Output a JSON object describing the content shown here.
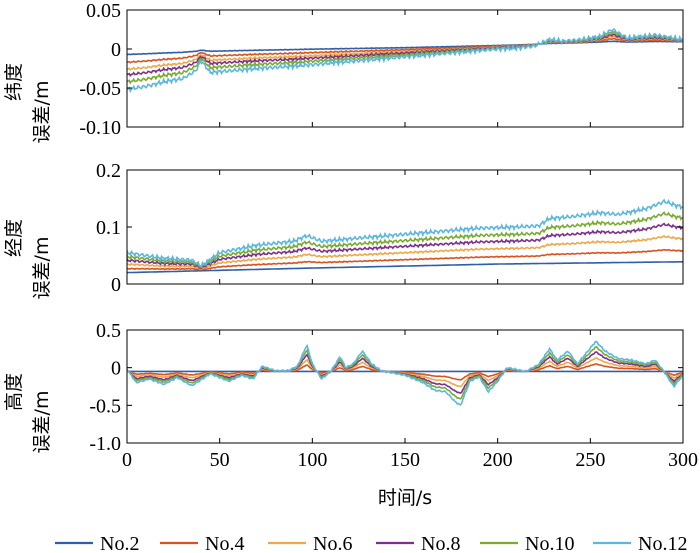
{
  "chart_data": {
    "type": "line",
    "x_axis": {
      "label": "时间/s",
      "range": [
        0,
        300
      ],
      "ticks": [
        0,
        50,
        100,
        150,
        200,
        250,
        300
      ],
      "tick_labels": [
        "0",
        "50",
        "100",
        "150",
        "200",
        "250",
        "300"
      ]
    },
    "series_names": [
      "No.2",
      "No.4",
      "No.6",
      "No.8",
      "No.10",
      "No.12"
    ],
    "colors": {
      "No.2": "#2f5fa7",
      "No.4": "#d9531e",
      "No.6": "#eda94a",
      "No.8": "#7e2f8e",
      "No.10": "#77ac30",
      "No.12": "#5bb7e0"
    },
    "legend_position": "bottom",
    "grid": false,
    "panels": [
      {
        "ylabel_line1": "纬度",
        "ylabel_line2": "误差/m",
        "ylim": [
          -0.1,
          0.05
        ],
        "yticks": [
          0.05,
          0,
          -0.05,
          -0.1
        ],
        "ytick_labels": [
          "0.05",
          "0",
          "-0.05",
          "-0.10"
        ],
        "base": [
          [
            0,
            -0.002
          ],
          [
            40,
            0.0
          ],
          [
            100,
            0.002
          ],
          [
            150,
            0.003
          ],
          [
            200,
            0.005
          ],
          [
            250,
            0.008
          ],
          [
            300,
            0.009
          ]
        ],
        "deviation": [
          [
            0,
            -0.052
          ],
          [
            10,
            -0.048
          ],
          [
            20,
            -0.042
          ],
          [
            30,
            -0.038
          ],
          [
            37,
            -0.028
          ],
          [
            40,
            -0.015
          ],
          [
            45,
            -0.03
          ],
          [
            55,
            -0.028
          ],
          [
            70,
            -0.025
          ],
          [
            90,
            -0.022
          ],
          [
            110,
            -0.018
          ],
          [
            130,
            -0.014
          ],
          [
            150,
            -0.01
          ],
          [
            170,
            -0.006
          ],
          [
            190,
            -0.002
          ],
          [
            200,
            0.0
          ],
          [
            210,
            0.001
          ],
          [
            220,
            0.004
          ],
          [
            228,
            0.012
          ],
          [
            235,
            0.01
          ],
          [
            245,
            0.012
          ],
          [
            255,
            0.016
          ],
          [
            262,
            0.025
          ],
          [
            270,
            0.014
          ],
          [
            285,
            0.018
          ],
          [
            300,
            0.012
          ]
        ],
        "noise": 0.003,
        "frac": [
          0.1,
          0.3,
          0.48,
          0.62,
          0.8,
          1.0
        ]
      },
      {
        "ylabel_line1": "经度",
        "ylabel_line2": "误差/m",
        "ylim": [
          0,
          0.2
        ],
        "yticks": [
          0.2,
          0.1,
          0
        ],
        "ytick_labels": [
          "0.2",
          "0.1",
          "0"
        ],
        "base": [
          [
            0,
            0.02
          ],
          [
            100,
            0.028
          ],
          [
            200,
            0.035
          ],
          [
            300,
            0.039
          ]
        ],
        "deviation": [
          [
            0,
            0.055
          ],
          [
            20,
            0.045
          ],
          [
            35,
            0.042
          ],
          [
            40,
            0.032
          ],
          [
            50,
            0.055
          ],
          [
            70,
            0.068
          ],
          [
            90,
            0.075
          ],
          [
            97,
            0.085
          ],
          [
            105,
            0.075
          ],
          [
            130,
            0.082
          ],
          [
            160,
            0.09
          ],
          [
            190,
            0.098
          ],
          [
            210,
            0.1
          ],
          [
            222,
            0.102
          ],
          [
            228,
            0.115
          ],
          [
            240,
            0.118
          ],
          [
            255,
            0.125
          ],
          [
            265,
            0.122
          ],
          [
            280,
            0.132
          ],
          [
            290,
            0.145
          ],
          [
            296,
            0.138
          ],
          [
            300,
            0.135
          ]
        ],
        "noise": 0.004,
        "frac": [
          0.0,
          0.2,
          0.42,
          0.62,
          0.8,
          1.0
        ]
      },
      {
        "ylabel_line1": "高度",
        "ylabel_line2": "误差/m",
        "ylim": [
          -1.0,
          0.5
        ],
        "yticks": [
          0.5,
          0,
          -0.5,
          -1.0
        ],
        "ytick_labels": [
          "0.5",
          "0",
          "-0.5",
          "-1.0"
        ],
        "base": [
          [
            0,
            -0.05
          ],
          [
            300,
            -0.05
          ]
        ],
        "deviation": [
          [
            0,
            -0.02
          ],
          [
            5,
            -0.2
          ],
          [
            12,
            -0.15
          ],
          [
            20,
            -0.22
          ],
          [
            27,
            -0.13
          ],
          [
            35,
            -0.24
          ],
          [
            45,
            -0.08
          ],
          [
            55,
            -0.18
          ],
          [
            62,
            -0.1
          ],
          [
            68,
            -0.15
          ],
          [
            73,
            0.02
          ],
          [
            80,
            -0.04
          ],
          [
            87,
            -0.04
          ],
          [
            92,
            0.02
          ],
          [
            97,
            0.3
          ],
          [
            100,
            0.05
          ],
          [
            105,
            -0.15
          ],
          [
            110,
            -0.05
          ],
          [
            115,
            0.15
          ],
          [
            118,
            0.0
          ],
          [
            122,
            0.05
          ],
          [
            127,
            0.22
          ],
          [
            132,
            0.05
          ],
          [
            137,
            -0.04
          ],
          [
            150,
            -0.1
          ],
          [
            160,
            -0.2
          ],
          [
            166,
            -0.3
          ],
          [
            172,
            -0.32
          ],
          [
            177,
            -0.45
          ],
          [
            180,
            -0.5
          ],
          [
            185,
            -0.18
          ],
          [
            190,
            -0.12
          ],
          [
            195,
            -0.32
          ],
          [
            200,
            -0.18
          ],
          [
            205,
            0.0
          ],
          [
            215,
            -0.05
          ],
          [
            222,
            0.04
          ],
          [
            228,
            0.25
          ],
          [
            232,
            0.1
          ],
          [
            238,
            0.22
          ],
          [
            243,
            0.05
          ],
          [
            248,
            0.2
          ],
          [
            253,
            0.35
          ],
          [
            258,
            0.22
          ],
          [
            265,
            0.12
          ],
          [
            272,
            0.1
          ],
          [
            280,
            0.05
          ],
          [
            285,
            0.1
          ],
          [
            290,
            -0.06
          ],
          [
            295,
            -0.25
          ],
          [
            300,
            -0.1
          ]
        ],
        "noise": 0.012,
        "frac": [
          0.0,
          0.25,
          0.45,
          0.65,
          0.82,
          1.0
        ]
      }
    ]
  }
}
